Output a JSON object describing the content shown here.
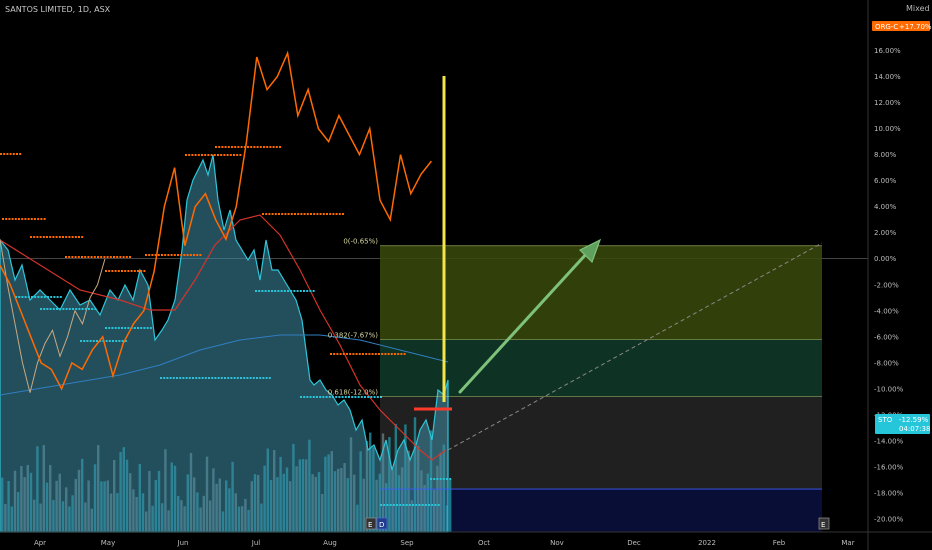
{
  "header": {
    "title": "SANTOS LIMITED, 1D, ASX",
    "scale_mode": "Mixed"
  },
  "badges": {
    "compare_symbol": "ORG-C",
    "compare_value": "+17.70%",
    "compare_color": "#ff6a00",
    "main_symbol": "STO",
    "main_value": "-12.59%",
    "main_sub": "04:07:38",
    "main_color": "#26c6da"
  },
  "events": {
    "earnings_a": "E",
    "dividend": "D",
    "earnings_b": "E"
  },
  "chart_data": {
    "type": "line",
    "title": "SANTOS LIMITED, 1D, ASX",
    "x_ticks": [
      "Apr",
      "May",
      "Jun",
      "Jul",
      "Aug",
      "Sep",
      "Oct",
      "Nov",
      "Dec",
      "2022",
      "Feb",
      "Mar"
    ],
    "y_ticks": [
      "18.00%",
      "16.00%",
      "14.00%",
      "12.00%",
      "10.00%",
      "8.00%",
      "6.00%",
      "4.00%",
      "2.00%",
      "0.00%",
      "-2.00%",
      "-4.00%",
      "-6.00%",
      "-8.00%",
      "-10.00%",
      "-12.00%",
      "-14.00%",
      "-16.00%",
      "-18.00%",
      "-20.00%"
    ],
    "ylim": [
      -21,
      18.5
    ],
    "xlim": [
      0,
      56
    ],
    "x_unit": "week index (Apr = week 1)",
    "fib_levels": [
      {
        "label": "0(-0.65%)",
        "value": 1.0
      },
      {
        "label": "0.382(-7.67%)",
        "value": -6.2
      },
      {
        "label": "0.618(-12.0%)",
        "value": -10.6
      }
    ],
    "zones": [
      {
        "from": 1.0,
        "to": -6.2,
        "color": "#3a4a0c"
      },
      {
        "from": -6.2,
        "to": -10.6,
        "color": "#103c2a"
      },
      {
        "from": -10.6,
        "to": -17.7,
        "color": "#262626"
      },
      {
        "from": -17.7,
        "to": -21,
        "color": "#0b1040"
      }
    ],
    "series": [
      {
        "name": "ORG-C",
        "color": "#ff6a00",
        "x": [
          0,
          1,
          2,
          3,
          4,
          5,
          6,
          7,
          8,
          9,
          10,
          11,
          12,
          13,
          14,
          15,
          16,
          17,
          18,
          19,
          20,
          21,
          22,
          23,
          24,
          25,
          26,
          27,
          28,
          29,
          30,
          31,
          32,
          33,
          34,
          35,
          36,
          37,
          38,
          39,
          40,
          41,
          42
        ],
        "y": [
          -0.5,
          -2,
          -4,
          -6,
          -8,
          -8.5,
          -10,
          -8,
          -8.5,
          -7,
          -6,
          -9,
          -6.5,
          -5,
          -4,
          -1,
          4,
          7,
          1,
          4,
          5,
          3,
          1.5,
          4,
          9,
          15.5,
          13,
          14,
          15.8,
          11,
          13,
          10,
          9,
          11,
          9.5,
          8,
          10,
          4.5,
          3,
          8,
          5,
          6.5,
          7.5
        ]
      },
      {
        "name": "",
        "color": "#c9a882",
        "x": [
          0,
          1,
          2,
          3,
          4,
          5,
          6,
          7,
          8,
          9,
          10,
          11,
          12,
          13,
          14
        ],
        "y": [
          1.5,
          -2,
          -5,
          -8,
          -10.3,
          -8,
          -6.5,
          -5.5,
          -7.5,
          -6,
          -4,
          -5,
          -3,
          -2,
          0
        ]
      }
    ]
  }
}
